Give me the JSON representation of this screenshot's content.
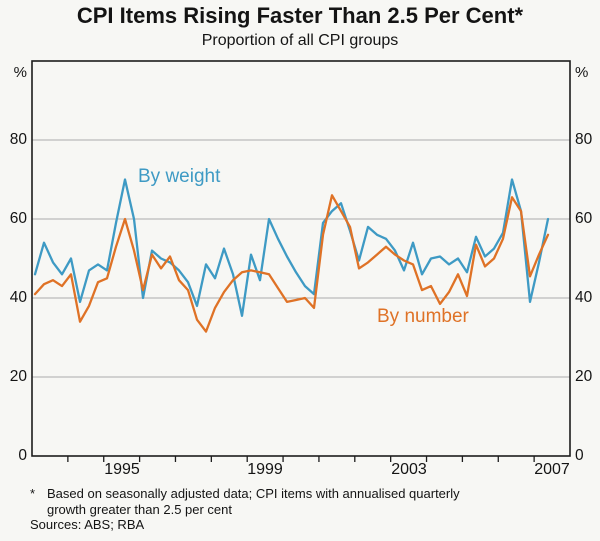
{
  "title": "CPI Items Rising Faster Than 2.5 Per Cent*",
  "subtitle": "Proportion of all CPI groups",
  "unit_left": "%",
  "unit_right": "%",
  "footnote": {
    "marker": "*",
    "text": "Based on seasonally adjusted data; CPI items with annualised quarterly growth greater than 2.5 per cent"
  },
  "sources": "Sources: ABS; RBA",
  "chart_data": {
    "type": "line",
    "title": "CPI Items Rising Faster Than 2.5 Per Cent",
    "subtitle": "Proportion of all CPI groups",
    "ylabel": "%",
    "ylim": [
      0,
      100
    ],
    "y_ticks": [
      0,
      20,
      40,
      60,
      80
    ],
    "x_range_years": [
      1993,
      2008
    ],
    "x_tick_labels": [
      "1995",
      "1999",
      "2003",
      "2007"
    ],
    "frequency": "quarterly",
    "x_start": "1993Q1",
    "x_end": "2007Q2",
    "grid": "horizontal",
    "legend_position": "inline-labels",
    "series": [
      {
        "name": "By weight",
        "color": "#3e9ac4",
        "values": [
          46,
          54,
          49,
          46,
          50,
          39,
          47,
          48.5,
          47,
          59,
          70,
          60,
          40,
          52,
          50,
          49,
          47,
          44,
          38,
          48.5,
          45,
          52.5,
          46,
          35.5,
          51,
          44.5,
          60,
          55,
          50.5,
          46.5,
          43,
          41,
          59,
          62,
          64,
          57,
          49.5,
          58,
          56,
          55,
          52,
          47,
          54,
          46,
          50,
          50.5,
          48.5,
          50,
          46.5,
          55.5,
          50.5,
          52.5,
          56.5,
          70,
          62,
          39,
          49,
          60
        ]
      },
      {
        "name": "By number",
        "color": "#df7226",
        "values": [
          41,
          43.5,
          44.5,
          43,
          46,
          34,
          38,
          44,
          45,
          53,
          60,
          52,
          42,
          51,
          47.5,
          50.5,
          44.5,
          42,
          34.5,
          31.5,
          37.5,
          41.5,
          44.5,
          46.5,
          47,
          46.5,
          46,
          42.5,
          39,
          39.5,
          40,
          37.5,
          56,
          66,
          62,
          58,
          47.5,
          49,
          51,
          53,
          51,
          49.5,
          48.5,
          42,
          43,
          38.5,
          41.5,
          46,
          40.5,
          53.5,
          48,
          50,
          55,
          65.5,
          62,
          45.5,
          51,
          56
        ]
      }
    ]
  }
}
